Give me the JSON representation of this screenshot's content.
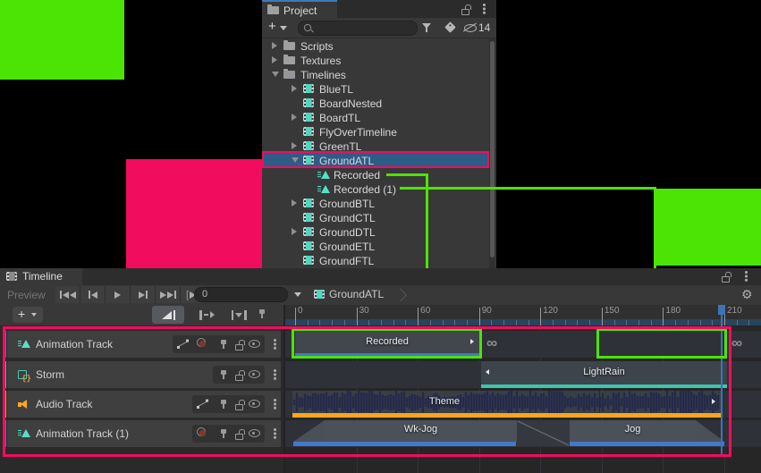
{
  "colors": {
    "annotation_pink": "#F20C5E",
    "annotation_green": "#4CE405",
    "clip_outline_green": "#4CE405",
    "selection_blue": "#2D5C87",
    "timeline_end_blue": "#3E74B5",
    "animation": "#4478C8",
    "playable": "#3FC3AE",
    "audio": "#FCA41F"
  },
  "project": {
    "tab_label": "Project",
    "search_placeholder": "",
    "hidden_count": "14",
    "tree": [
      {
        "label": "Scripts",
        "depth": 0,
        "arrow": "right",
        "icon": "folder"
      },
      {
        "label": "Textures",
        "depth": 0,
        "arrow": "right",
        "icon": "folder"
      },
      {
        "label": "Timelines",
        "depth": 0,
        "arrow": "down",
        "icon": "folder-open"
      },
      {
        "label": "BlueTL",
        "depth": 1,
        "arrow": "right",
        "icon": "timeline"
      },
      {
        "label": "BoardNested",
        "depth": 1,
        "arrow": null,
        "icon": "timeline"
      },
      {
        "label": "BoardTL",
        "depth": 1,
        "arrow": "right",
        "icon": "timeline"
      },
      {
        "label": "FlyOverTimeline",
        "depth": 1,
        "arrow": null,
        "icon": "timeline"
      },
      {
        "label": "GreenTL",
        "depth": 1,
        "arrow": "right",
        "icon": "timeline"
      },
      {
        "label": "GroundATL",
        "depth": 1,
        "arrow": "down",
        "icon": "timeline",
        "selected": true
      },
      {
        "label": "Recorded",
        "depth": 2,
        "arrow": null,
        "icon": "clip"
      },
      {
        "label": "Recorded (1)",
        "depth": 2,
        "arrow": null,
        "icon": "clip"
      },
      {
        "label": "GroundBTL",
        "depth": 1,
        "arrow": "right",
        "icon": "timeline"
      },
      {
        "label": "GroundCTL",
        "depth": 1,
        "arrow": null,
        "icon": "timeline"
      },
      {
        "label": "GroundDTL",
        "depth": 1,
        "arrow": "right",
        "icon": "timeline"
      },
      {
        "label": "GroundETL",
        "depth": 1,
        "arrow": null,
        "icon": "timeline"
      },
      {
        "label": "GroundFTL",
        "depth": 1,
        "arrow": null,
        "icon": "timeline"
      }
    ]
  },
  "timeline": {
    "tab_label": "Timeline",
    "preview_label": "Preview",
    "frame_field_value": "0",
    "breadcrumb": "GroundATL",
    "ruler_major_ticks": [
      "0",
      "30",
      "60",
      "90",
      "120",
      "150",
      "180",
      "210"
    ],
    "transport_buttons": [
      "skip-to-start",
      "previous-frame",
      "play",
      "next-frame",
      "skip-to-end",
      "play-range"
    ],
    "edit_modes": [
      "mix",
      "ripple",
      "replace"
    ],
    "tracks": [
      {
        "name": "Animation Track",
        "type": "animation",
        "buttons": [
          "curves",
          "record"
        ]
      },
      {
        "name": "Storm",
        "type": "playable",
        "buttons": []
      },
      {
        "name": "Audio Track",
        "type": "audio",
        "buttons": [
          "curves"
        ]
      },
      {
        "name": "Animation Track (1)",
        "type": "animation",
        "buttons": [
          "record"
        ]
      }
    ],
    "clips": {
      "recorded": "Recorded",
      "recorded_1": "Recorded (1)",
      "light_rain": "LightRain",
      "theme": "Theme",
      "wk_jog": "Wk-Jog",
      "jog": "Jog",
      "hold_symbol": "∞"
    }
  }
}
